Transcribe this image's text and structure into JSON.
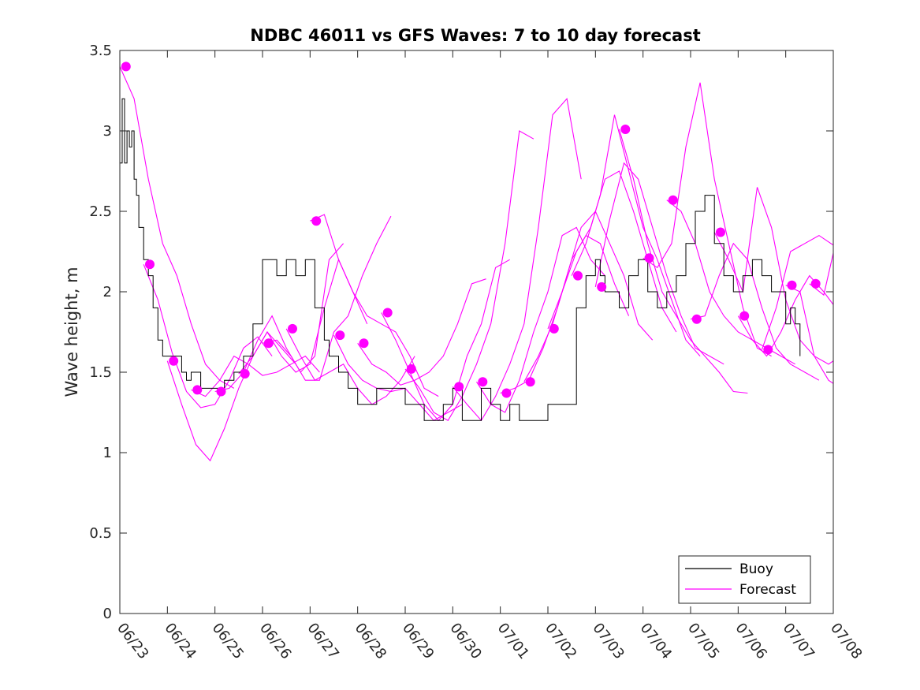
{
  "chart_data": {
    "type": "line",
    "title": "NDBC 46011 vs GFS Waves: 7 to 10 day forecast",
    "xlabel": "",
    "ylabel": "Wave height, m",
    "xlim": [
      "06/23",
      "07/08"
    ],
    "ylim": [
      0,
      3.5
    ],
    "x_tick_labels": [
      "06/23",
      "06/24",
      "06/25",
      "06/26",
      "06/27",
      "06/28",
      "06/29",
      "06/30",
      "07/01",
      "07/02",
      "07/03",
      "07/04",
      "07/05",
      "07/06",
      "07/07",
      "07/08"
    ],
    "y_tick_labels": [
      "0",
      "0.5",
      "1",
      "1.5",
      "2",
      "2.5",
      "3",
      "3.5"
    ],
    "y_ticks": [
      0,
      0.5,
      1,
      1.5,
      2,
      2.5,
      3,
      3.5
    ],
    "grid": false,
    "legend": {
      "position": "bottom-right",
      "entries": [
        "Buoy",
        "Forecast"
      ]
    },
    "colors": {
      "buoy": "#000000",
      "forecast": "#ff00ff"
    },
    "buoy": {
      "name": "Buoy",
      "x_days": [
        0,
        0.05,
        0.1,
        0.15,
        0.2,
        0.25,
        0.3,
        0.35,
        0.4,
        0.5,
        0.6,
        0.7,
        0.8,
        0.9,
        1.0,
        1.1,
        1.2,
        1.3,
        1.4,
        1.5,
        1.6,
        1.7,
        1.8,
        1.9,
        2.0,
        2.2,
        2.4,
        2.6,
        2.8,
        3.0,
        3.1,
        3.2,
        3.3,
        3.5,
        3.7,
        3.9,
        4.1,
        4.3,
        4.4,
        4.6,
        4.8,
        5.0,
        5.2,
        5.4,
        5.6,
        5.8,
        6.0,
        6.2,
        6.4,
        6.6,
        6.8,
        7.0,
        7.2,
        7.4,
        7.6,
        7.8,
        8.0,
        8.2,
        8.4,
        8.6,
        8.8,
        9.0,
        9.2,
        9.4,
        9.6,
        9.8,
        10.0,
        10.1,
        10.2,
        10.3,
        10.5,
        10.7,
        10.9,
        11.1,
        11.3,
        11.5,
        11.7,
        11.9,
        12.1,
        12.3,
        12.5,
        12.7,
        12.9,
        13.1,
        13.3,
        13.5,
        13.7,
        13.9,
        14.0,
        14.1,
        14.2,
        14.3
      ],
      "values": [
        2.8,
        3.2,
        2.8,
        3.0,
        2.9,
        3.0,
        2.7,
        2.6,
        2.4,
        2.2,
        2.1,
        1.9,
        1.7,
        1.6,
        1.6,
        1.6,
        1.6,
        1.5,
        1.45,
        1.5,
        1.5,
        1.4,
        1.4,
        1.4,
        1.4,
        1.45,
        1.5,
        1.6,
        1.8,
        2.2,
        2.2,
        2.2,
        2.1,
        2.2,
        2.1,
        2.2,
        1.9,
        1.7,
        1.6,
        1.5,
        1.4,
        1.3,
        1.3,
        1.4,
        1.4,
        1.4,
        1.3,
        1.3,
        1.2,
        1.2,
        1.3,
        1.4,
        1.2,
        1.2,
        1.4,
        1.3,
        1.2,
        1.3,
        1.2,
        1.2,
        1.2,
        1.3,
        1.3,
        1.3,
        1.9,
        2.1,
        2.2,
        2.1,
        2.0,
        2.0,
        1.9,
        2.1,
        2.2,
        2.0,
        1.9,
        2.0,
        2.1,
        2.3,
        2.5,
        2.6,
        2.3,
        2.1,
        2.0,
        2.1,
        2.2,
        2.1,
        2.0,
        2.0,
        1.8,
        1.9,
        1.8,
        1.6
      ]
    },
    "forecast_runs": [
      {
        "x_days": [
          0,
          0.3,
          0.6,
          0.9,
          1.2,
          1.5,
          1.8,
          2.1,
          2.4
        ],
        "values": [
          3.4,
          3.2,
          2.7,
          2.3,
          2.1,
          1.8,
          1.55,
          1.45,
          1.4
        ]
      },
      {
        "x_days": [
          0.5,
          0.8,
          1.1,
          1.4,
          1.7,
          2.0,
          2.3,
          2.6,
          2.9,
          3.2
        ],
        "values": [
          2.17,
          1.95,
          1.62,
          1.38,
          1.28,
          1.3,
          1.45,
          1.65,
          1.72,
          1.6
        ]
      },
      {
        "x_days": [
          1.0,
          1.3,
          1.6,
          1.9,
          2.2,
          2.5,
          2.8,
          3.1,
          3.4,
          3.7
        ],
        "values": [
          1.57,
          1.3,
          1.05,
          0.95,
          1.15,
          1.4,
          1.6,
          1.75,
          1.65,
          1.55
        ]
      },
      {
        "x_days": [
          1.5,
          1.8,
          2.1,
          2.4,
          2.7,
          3.0,
          3.3,
          3.6,
          3.9,
          4.2
        ],
        "values": [
          1.39,
          1.35,
          1.45,
          1.6,
          1.55,
          1.48,
          1.5,
          1.55,
          1.6,
          1.5
        ]
      },
      {
        "x_days": [
          2.0,
          2.3,
          2.6,
          2.9,
          3.2,
          3.5,
          3.8,
          4.1,
          4.4,
          4.7
        ],
        "values": [
          1.38,
          1.4,
          1.5,
          1.7,
          1.85,
          1.65,
          1.5,
          1.6,
          2.2,
          2.3
        ]
      },
      {
        "x_days": [
          2.5,
          2.8,
          3.1,
          3.4,
          3.7,
          4.0,
          4.3,
          4.6,
          4.9,
          5.2
        ],
        "values": [
          1.49,
          1.6,
          1.75,
          1.6,
          1.5,
          1.55,
          1.9,
          2.2,
          2.0,
          1.8
        ]
      },
      {
        "x_days": [
          3.0,
          3.3,
          3.6,
          3.9,
          4.2,
          4.5,
          4.8,
          5.1,
          5.4,
          5.7
        ],
        "values": [
          1.68,
          1.7,
          1.6,
          1.45,
          1.45,
          1.75,
          1.85,
          2.1,
          2.3,
          2.47
        ]
      },
      {
        "x_days": [
          3.5,
          3.8,
          4.1,
          4.4,
          4.7,
          5.0,
          5.3,
          5.6,
          5.9,
          6.2
        ],
        "values": [
          1.77,
          1.6,
          1.45,
          1.5,
          1.55,
          1.4,
          1.3,
          1.35,
          1.45,
          1.6
        ]
      },
      {
        "x_days": [
          4.0,
          4.3,
          4.6,
          4.9,
          5.2,
          5.5,
          5.8,
          6.1,
          6.4,
          6.7
        ],
        "values": [
          2.44,
          2.48,
          2.2,
          2.0,
          1.85,
          1.8,
          1.75,
          1.6,
          1.4,
          1.35
        ]
      },
      {
        "x_days": [
          4.5,
          4.8,
          5.1,
          5.4,
          5.7,
          6.0,
          6.3,
          6.6,
          6.9,
          7.2
        ],
        "values": [
          1.73,
          1.55,
          1.45,
          1.4,
          1.38,
          1.4,
          1.3,
          1.2,
          1.25,
          1.3
        ]
      },
      {
        "x_days": [
          5.0,
          5.3,
          5.6,
          5.9,
          6.2,
          6.5,
          6.8,
          7.1,
          7.4,
          7.7
        ],
        "values": [
          1.68,
          1.55,
          1.5,
          1.42,
          1.45,
          1.5,
          1.6,
          1.8,
          2.05,
          2.08
        ]
      },
      {
        "x_days": [
          5.5,
          5.8,
          6.1,
          6.4,
          6.7,
          7.0,
          7.3,
          7.6,
          7.9,
          8.2
        ],
        "values": [
          1.87,
          1.7,
          1.5,
          1.3,
          1.2,
          1.3,
          1.6,
          1.8,
          2.15,
          2.2
        ]
      },
      {
        "x_days": [
          6.0,
          6.3,
          6.6,
          6.9,
          7.2,
          7.5,
          7.8,
          8.1,
          8.4,
          8.7
        ],
        "values": [
          1.52,
          1.4,
          1.25,
          1.2,
          1.35,
          1.55,
          1.8,
          2.3,
          3.0,
          2.95
        ]
      },
      {
        "x_days": [
          7.0,
          7.3,
          7.6,
          7.9,
          8.2,
          8.5,
          8.8,
          9.1,
          9.4,
          9.7
        ],
        "values": [
          1.41,
          1.3,
          1.2,
          1.35,
          1.55,
          1.8,
          2.4,
          3.1,
          3.2,
          2.7
        ]
      },
      {
        "x_days": [
          7.5,
          7.8,
          8.1,
          8.4,
          8.7,
          9.0,
          9.3,
          9.6,
          9.9,
          10.2
        ],
        "values": [
          1.44,
          1.3,
          1.25,
          1.45,
          1.75,
          2.0,
          2.35,
          2.4,
          2.2,
          2.1
        ]
      },
      {
        "x_days": [
          8.0,
          8.3,
          8.6,
          8.9,
          9.2,
          9.5,
          9.8,
          10.1,
          10.4,
          10.7
        ],
        "values": [
          1.37,
          1.4,
          1.45,
          1.65,
          1.9,
          2.2,
          2.35,
          2.3,
          2.05,
          1.85
        ]
      },
      {
        "x_days": [
          8.5,
          8.8,
          9.1,
          9.4,
          9.7,
          10.0,
          10.3,
          10.6,
          10.9,
          11.2
        ],
        "values": [
          1.44,
          1.6,
          1.8,
          2.1,
          2.4,
          2.5,
          2.3,
          2.1,
          1.8,
          1.7
        ]
      },
      {
        "x_days": [
          9.0,
          9.3,
          9.6,
          9.9,
          10.2,
          10.5,
          10.8,
          11.1,
          11.4,
          11.7
        ],
        "values": [
          1.77,
          2.0,
          2.25,
          2.4,
          2.7,
          2.75,
          2.5,
          2.2,
          1.9,
          1.75
        ]
      },
      {
        "x_days": [
          9.5,
          9.8,
          10.1,
          10.4,
          10.7,
          11.0,
          11.3,
          11.6,
          11.9,
          12.2
        ],
        "values": [
          2.1,
          2.3,
          2.6,
          3.1,
          2.75,
          2.4,
          2.2,
          1.95,
          1.7,
          1.6
        ]
      },
      {
        "x_days": [
          10.0,
          10.3,
          10.6,
          10.9,
          11.2,
          11.5,
          11.8,
          12.1,
          12.4,
          12.7
        ],
        "values": [
          2.03,
          2.45,
          2.8,
          2.7,
          2.4,
          2.1,
          1.85,
          1.65,
          1.6,
          1.55
        ]
      },
      {
        "x_days": [
          10.5,
          10.8,
          11.1,
          11.4,
          11.7,
          12.0,
          12.3,
          12.6,
          12.9,
          13.2
        ],
        "values": [
          3.01,
          2.7,
          2.3,
          2.0,
          1.85,
          1.7,
          1.6,
          1.5,
          1.38,
          1.37
        ]
      },
      {
        "x_days": [
          11.0,
          11.3,
          11.6,
          11.9,
          12.2,
          12.5,
          12.8,
          13.1,
          13.4,
          13.7
        ],
        "values": [
          2.21,
          2.15,
          2.3,
          2.9,
          3.3,
          2.7,
          2.3,
          1.9,
          1.65,
          1.6
        ]
      },
      {
        "x_days": [
          11.5,
          11.8,
          12.1,
          12.4,
          12.7,
          13.0,
          13.3,
          13.6,
          13.9,
          14.2
        ],
        "values": [
          2.57,
          2.5,
          2.3,
          2.0,
          1.85,
          1.75,
          1.7,
          1.65,
          1.6,
          1.55
        ]
      },
      {
        "x_days": [
          12.0,
          12.3,
          12.6,
          12.9,
          13.2,
          13.5,
          13.8,
          14.1,
          14.4,
          14.7
        ],
        "values": [
          1.83,
          1.85,
          2.1,
          2.3,
          2.2,
          1.9,
          1.65,
          1.55,
          1.5,
          1.45
        ]
      },
      {
        "x_days": [
          12.5,
          12.8,
          13.1,
          13.4,
          13.7,
          14.0,
          14.3,
          14.6,
          14.9,
          15.0
        ],
        "values": [
          2.37,
          2.2,
          2.0,
          2.65,
          2.4,
          1.95,
          1.7,
          1.6,
          1.55,
          1.57
        ]
      },
      {
        "x_days": [
          13.0,
          13.3,
          13.6,
          13.9,
          14.2,
          14.5,
          14.8,
          15.0
        ],
        "values": [
          1.85,
          1.7,
          1.6,
          1.75,
          1.95,
          2.1,
          2.0,
          1.92
        ]
      },
      {
        "x_days": [
          13.5,
          13.8,
          14.1,
          14.4,
          14.7,
          15.0
        ],
        "values": [
          1.64,
          1.9,
          2.25,
          2.3,
          2.35,
          2.29
        ]
      },
      {
        "x_days": [
          14.0,
          14.3,
          14.6,
          14.9,
          15.0
        ],
        "values": [
          2.04,
          2.0,
          1.6,
          1.45,
          1.43
        ]
      },
      {
        "x_days": [
          14.5,
          14.8,
          15.0
        ],
        "values": [
          2.05,
          1.98,
          2.24
        ]
      }
    ],
    "forecast_markers": {
      "x_days": [
        0.13,
        0.63,
        1.13,
        1.63,
        2.13,
        2.63,
        3.13,
        3.63,
        4.13,
        4.63,
        5.13,
        5.63,
        6.13,
        7.13,
        7.63,
        8.13,
        8.63,
        9.13,
        9.63,
        10.13,
        10.63,
        11.13,
        11.63,
        12.13,
        12.63,
        13.13,
        13.63,
        14.13,
        14.63
      ],
      "values": [
        3.4,
        2.17,
        1.57,
        1.39,
        1.38,
        1.49,
        1.68,
        1.77,
        2.44,
        1.73,
        1.68,
        1.87,
        1.52,
        1.41,
        1.44,
        1.37,
        1.44,
        1.77,
        2.1,
        2.03,
        3.01,
        2.21,
        2.57,
        1.83,
        2.37,
        1.85,
        1.64,
        2.04,
        2.05
      ]
    }
  }
}
